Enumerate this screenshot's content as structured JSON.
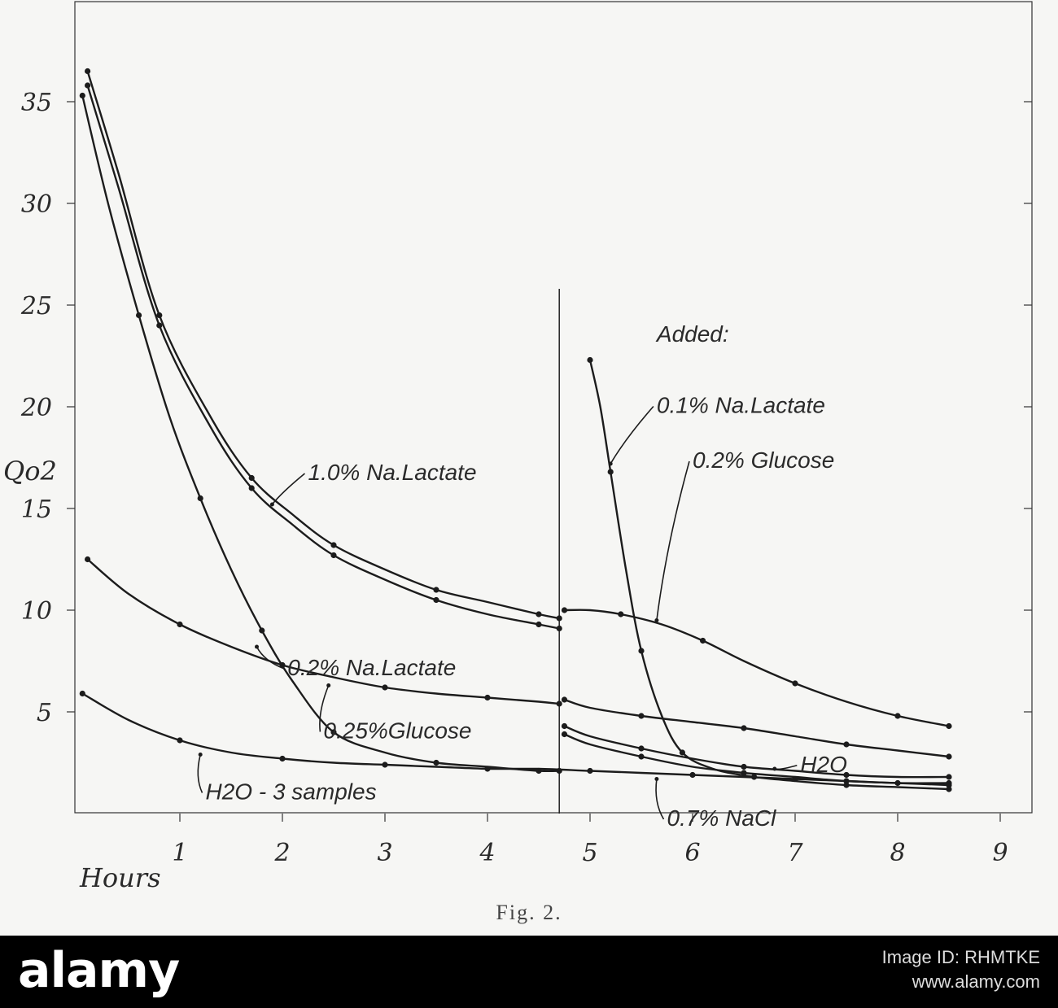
{
  "chart_data": {
    "type": "line",
    "y_axis_label": "Qo2",
    "x_axis_label": "Hours",
    "caption": "Fig. 2.",
    "xlim": [
      0,
      9.4
    ],
    "ylim": [
      0,
      38
    ],
    "x_ticks": [
      1,
      2,
      3,
      4,
      5,
      6,
      7,
      8,
      9
    ],
    "x_tick_labels": [
      "1",
      "2",
      "3",
      "4",
      "5",
      "6",
      "7",
      "8",
      "9"
    ],
    "y_ticks": [
      5,
      10,
      15,
      20,
      25,
      30,
      35
    ],
    "y_tick_labels": [
      "5",
      "10",
      "15",
      "20",
      "25",
      "30",
      "35"
    ],
    "addition_time": 4.7,
    "grid": false,
    "legend": "none",
    "series": [
      {
        "key": "lactate-1",
        "name": "1.0% Na.Lactate",
        "x": [
          0.1,
          0.4,
          0.8,
          1.3,
          1.7,
          2.1,
          2.5,
          3.0,
          3.5,
          4.0,
          4.5,
          4.7
        ],
        "y": [
          36.5,
          31.5,
          24.5,
          19.5,
          16.5,
          14.7,
          13.2,
          12.0,
          11.0,
          10.4,
          9.8,
          9.6
        ]
      },
      {
        "key": "lactate-1b",
        "name": "",
        "x": [
          0.1,
          0.4,
          0.8,
          1.3,
          1.7,
          2.1,
          2.5,
          3.0,
          3.5,
          4.0,
          4.5,
          4.7
        ],
        "y": [
          35.8,
          30.8,
          24.0,
          19.0,
          16.0,
          14.2,
          12.7,
          11.5,
          10.5,
          9.8,
          9.3,
          9.1
        ]
      },
      {
        "key": "lactate-02",
        "name": "0.2% Na.Lactate",
        "x": [
          0.05,
          0.3,
          0.6,
          0.9,
          1.2,
          1.5,
          1.8,
          2.1,
          2.5,
          3.0,
          3.5,
          4.0,
          4.5,
          4.7
        ],
        "y": [
          35.3,
          30.0,
          24.5,
          19.5,
          15.5,
          12.0,
          9.0,
          6.5,
          4.0,
          3.0,
          2.5,
          2.3,
          2.1,
          2.1
        ]
      },
      {
        "key": "glucose-025",
        "name": "0.25%Glucose",
        "x": [
          0.1,
          0.5,
          1.0,
          1.5,
          2.0,
          2.5,
          3.0,
          3.5,
          4.0,
          4.5,
          4.7
        ],
        "y": [
          12.5,
          10.8,
          9.3,
          8.2,
          7.3,
          6.7,
          6.2,
          5.9,
          5.7,
          5.5,
          5.4
        ]
      },
      {
        "key": "water-3",
        "name": "H2O - 3 samples",
        "x": [
          0.05,
          0.5,
          1.0,
          1.5,
          2.0,
          2.5,
          3.0,
          3.5,
          4.0,
          4.5,
          5.0,
          5.5,
          6.0,
          6.5,
          7.0,
          7.5,
          8.0,
          8.5
        ],
        "y": [
          5.9,
          4.6,
          3.6,
          3.0,
          2.7,
          2.5,
          2.4,
          2.3,
          2.2,
          2.2,
          2.1,
          2.0,
          1.9,
          1.8,
          1.7,
          1.6,
          1.5,
          1.5
        ]
      },
      {
        "key": "lactate-01",
        "name": "0.1% Na.Lactate",
        "x": [
          5.0,
          5.1,
          5.2,
          5.35,
          5.5,
          5.7,
          5.9,
          6.2,
          6.6,
          7.0,
          7.5,
          8.0,
          8.5
        ],
        "y": [
          22.3,
          20.0,
          16.8,
          12.0,
          8.0,
          4.8,
          3.0,
          2.2,
          1.8,
          1.6,
          1.4,
          1.3,
          1.2
        ]
      },
      {
        "key": "glucose-02",
        "name": "0.2% Glucose",
        "x": [
          4.75,
          5.0,
          5.3,
          5.7,
          6.1,
          6.5,
          7.0,
          7.5,
          8.0,
          8.5
        ],
        "y": [
          10.0,
          10.0,
          9.8,
          9.3,
          8.5,
          7.5,
          6.4,
          5.5,
          4.8,
          4.3
        ]
      },
      {
        "key": "post-upper",
        "name": "",
        "x": [
          4.75,
          5.0,
          5.5,
          6.0,
          6.5,
          7.0,
          7.5,
          8.0,
          8.5
        ],
        "y": [
          5.6,
          5.2,
          4.8,
          4.5,
          4.2,
          3.8,
          3.4,
          3.1,
          2.8
        ]
      },
      {
        "key": "post-water",
        "name": "H2O",
        "x": [
          4.75,
          5.0,
          5.5,
          6.0,
          6.5,
          7.0,
          7.5,
          8.0,
          8.5
        ],
        "y": [
          4.3,
          3.8,
          3.2,
          2.7,
          2.3,
          2.1,
          1.9,
          1.8,
          1.8
        ]
      },
      {
        "key": "post-nacl",
        "name": "0.7% NaCl",
        "x": [
          4.75,
          5.0,
          5.5,
          6.0,
          6.5,
          7.0,
          7.5,
          8.0,
          8.5
        ],
        "y": [
          3.9,
          3.4,
          2.8,
          2.3,
          2.0,
          1.8,
          1.6,
          1.5,
          1.4
        ]
      }
    ],
    "annotations": [
      {
        "key": "added",
        "text": "Added:",
        "x": 5.65,
        "y": 23.2,
        "arrow_to": null
      },
      {
        "key": "lactate-01",
        "text": "0.1% Na.Lactate",
        "x": 5.65,
        "y": 19.7,
        "arrow_to": [
          5.2,
          17.2
        ]
      },
      {
        "key": "glucose-02",
        "text": "0.2% Glucose",
        "x": 6.0,
        "y": 17.0,
        "arrow_to": [
          5.65,
          9.5
        ]
      },
      {
        "key": "lactate-1",
        "text": "1.0% Na.Lactate",
        "x": 2.25,
        "y": 16.4,
        "arrow_to": [
          1.9,
          15.2
        ]
      },
      {
        "key": "lactate-02",
        "text": "0.2% Na.Lactate",
        "x": 2.05,
        "y": 6.8,
        "arrow_to": [
          1.75,
          8.2
        ]
      },
      {
        "key": "glucose-025",
        "text": "0.25%Glucose",
        "x": 2.4,
        "y": 3.7,
        "arrow_to": [
          2.45,
          6.3
        ]
      },
      {
        "key": "water-3",
        "text": "H2O - 3 samples",
        "x": 1.25,
        "y": 0.7,
        "arrow_to": [
          1.2,
          2.9
        ]
      },
      {
        "key": "post-water",
        "text": "H2O",
        "x": 7.05,
        "y": 2.05,
        "arrow_to": [
          6.8,
          2.2
        ]
      },
      {
        "key": "post-nacl",
        "text": "0.7% NaCl",
        "x": 5.75,
        "y": -0.6,
        "arrow_to": [
          5.65,
          1.7
        ]
      }
    ]
  },
  "watermark": {
    "brand": "alamy",
    "image_id": "Image ID: RHMTKE",
    "url": "www.alamy.com"
  }
}
